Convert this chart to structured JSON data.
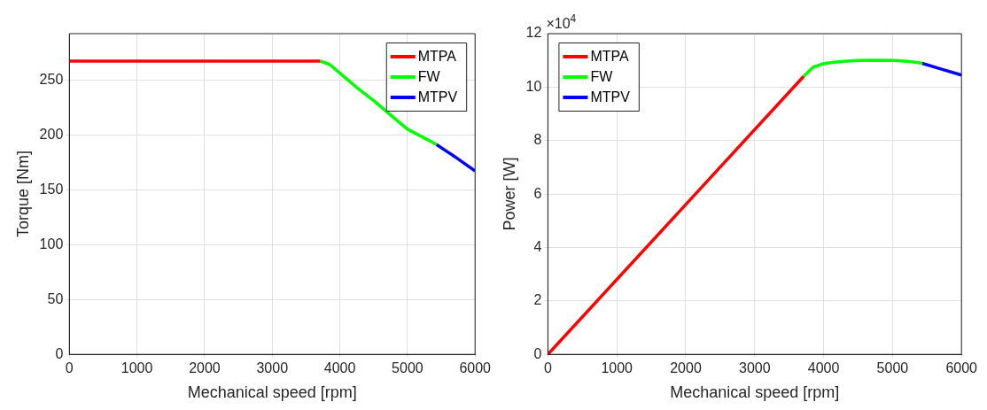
{
  "chart_data": [
    {
      "type": "line",
      "xlabel": "Mechanical speed [rpm]",
      "ylabel": "Torque [Nm]",
      "xlim": [
        0,
        6000
      ],
      "xticks": [
        0,
        1000,
        2000,
        3000,
        4000,
        5000,
        6000
      ],
      "ylim": [
        0,
        292
      ],
      "yticks": [
        0,
        50,
        100,
        150,
        200,
        250
      ],
      "grid": true,
      "legend": "top right",
      "line_style": "solid",
      "marker": "none",
      "series": [
        {
          "name": "MTPA",
          "color": "#ff0000",
          "x": [
            0,
            3710
          ],
          "values": [
            267,
            267
          ]
        },
        {
          "name": "FW",
          "color": "#00ff00",
          "x": [
            3710,
            3850,
            4000,
            4250,
            4500,
            4750,
            5000,
            5250,
            5430
          ],
          "values": [
            267,
            264,
            256,
            243,
            231,
            218,
            205,
            197,
            191
          ]
        },
        {
          "name": "MTPV",
          "color": "#0000ff",
          "x": [
            5430,
            5700,
            6000
          ],
          "values": [
            191,
            180,
            167
          ]
        }
      ]
    },
    {
      "type": "line",
      "xlabel": "Mechanical speed [rpm]",
      "ylabel": "Power [W]",
      "annotations": [
        "×10$^{4}$"
      ],
      "xlim": [
        0,
        6000
      ],
      "xticks": [
        0,
        1000,
        2000,
        3000,
        4000,
        5000,
        6000
      ],
      "ylim": [
        0,
        12
      ],
      "yticks": [
        0,
        2,
        4,
        6,
        8,
        10,
        12
      ],
      "grid": true,
      "legend": "top left",
      "line_style": "solid",
      "marker": "none",
      "series": [
        {
          "name": "MTPA",
          "color": "#ff0000",
          "x": [
            0,
            3710
          ],
          "values": [
            0,
            10.4
          ]
        },
        {
          "name": "FW",
          "color": "#00ff00",
          "x": [
            3710,
            3850,
            4000,
            4250,
            4500,
            4750,
            5000,
            5250,
            5430
          ],
          "values": [
            10.4,
            10.75,
            10.88,
            10.96,
            11.0,
            11.01,
            11.0,
            10.96,
            10.89
          ]
        },
        {
          "name": "MTPV",
          "color": "#0000ff",
          "x": [
            5430,
            5700,
            6000
          ],
          "values": [
            10.89,
            10.68,
            10.45
          ]
        }
      ]
    }
  ]
}
